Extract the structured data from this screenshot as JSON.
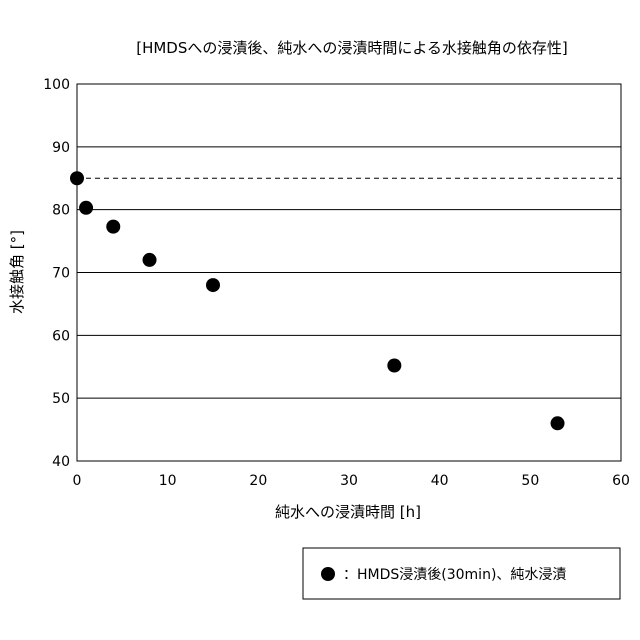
{
  "chart_data": {
    "type": "scatter",
    "title": "[HMDSへの浸漬後、純水への浸漬時間による水接触角の依存性]",
    "xlabel": "純水への浸漬時間 [h]",
    "ylabel": "水接触角 [°]",
    "xlim": [
      0,
      60
    ],
    "ylim": [
      40,
      100
    ],
    "xticks": [
      0,
      10,
      20,
      30,
      40,
      50,
      60
    ],
    "yticks": [
      40,
      50,
      60,
      70,
      80,
      90,
      100
    ],
    "grid": "horizontal",
    "legend_placement": "bottom-right",
    "reference_line": {
      "y": 85,
      "style": "dashed"
    },
    "series": [
      {
        "name": "：HMDS浸漬後(30min)、純水浸漬",
        "marker": "filled-circle",
        "color": "#000000",
        "x": [
          0,
          1,
          4,
          8,
          15,
          35,
          53
        ],
        "y": [
          85,
          80.3,
          77.3,
          72,
          68,
          55.2,
          46
        ]
      }
    ]
  }
}
